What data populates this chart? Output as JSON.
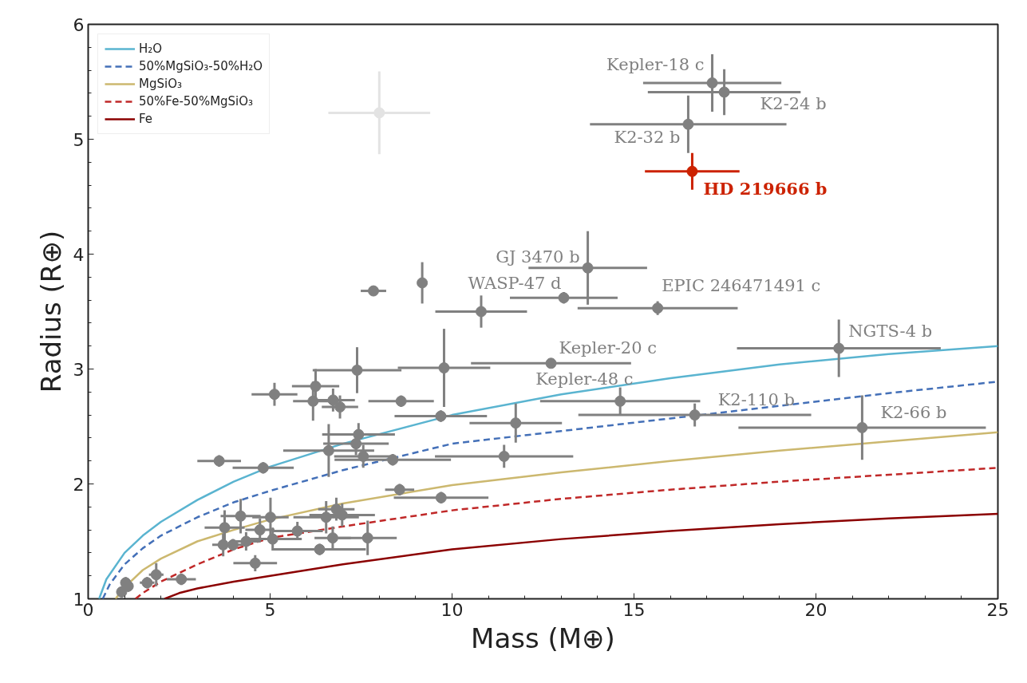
{
  "chart_data": {
    "type": "scatter",
    "xlabel": "Mass (M⊕)",
    "ylabel": "Radius (R⊕)",
    "xlim": [
      0,
      25
    ],
    "ylim": [
      1,
      6
    ],
    "xticks": [
      0,
      5,
      10,
      15,
      20,
      25
    ],
    "yticks": [
      1,
      2,
      3,
      4,
      5,
      6
    ],
    "legend": "top left",
    "grid": false,
    "series": [
      {
        "name": "H₂O",
        "type": "line",
        "color": "#5ab4d0",
        "line_style": "solid",
        "x": [
          0.3,
          0.5,
          1,
          1.5,
          2,
          3,
          4,
          5,
          7,
          10,
          13,
          16,
          19,
          22,
          25
        ],
        "values": [
          1,
          1.17,
          1.4,
          1.55,
          1.67,
          1.86,
          2.02,
          2.15,
          2.35,
          2.6,
          2.78,
          2.92,
          3.04,
          3.13,
          3.2
        ]
      },
      {
        "name": "50%MgSiO₃-50%H₂O",
        "type": "line",
        "color": "#4470b8",
        "line_style": "dashed",
        "x": [
          0.4,
          0.6,
          1,
          1.5,
          2,
          3,
          4,
          5,
          7,
          10,
          13,
          16,
          19,
          22,
          25
        ],
        "values": [
          1,
          1.13,
          1.3,
          1.44,
          1.55,
          1.71,
          1.84,
          1.94,
          2.12,
          2.35,
          2.46,
          2.57,
          2.68,
          2.79,
          2.89
        ]
      },
      {
        "name": "MgSiO₃",
        "type": "line",
        "color": "#ccb86f",
        "line_style": "solid",
        "x": [
          0.75,
          1,
          1.5,
          2,
          3,
          4,
          5,
          7,
          10,
          13,
          16,
          19,
          22,
          25
        ],
        "values": [
          1,
          1.1,
          1.25,
          1.35,
          1.5,
          1.6,
          1.69,
          1.83,
          1.99,
          2.1,
          2.2,
          2.29,
          2.37,
          2.45
        ]
      },
      {
        "name": "50%Fe-50%MgSiO₃",
        "type": "line",
        "color": "#c02828",
        "line_style": "dashed",
        "x": [
          1.3,
          1.5,
          2,
          3,
          4,
          5,
          7,
          10,
          13,
          16,
          19,
          22,
          25
        ],
        "values": [
          1,
          1.05,
          1.15,
          1.3,
          1.43,
          1.53,
          1.63,
          1.77,
          1.87,
          1.95,
          2.02,
          2.08,
          2.14
        ]
      },
      {
        "name": "Fe",
        "type": "line",
        "color": "#8b0000",
        "line_style": "solid",
        "x": [
          2.1,
          2.5,
          3,
          4,
          5,
          7,
          10,
          13,
          16,
          19,
          22,
          25
        ],
        "values": [
          1,
          1.05,
          1.09,
          1.15,
          1.2,
          1.3,
          1.43,
          1.52,
          1.59,
          1.65,
          1.7,
          1.74
        ]
      },
      {
        "marker": "circle",
        "color": "#e3e3e3",
        "x": [
          8.0
        ],
        "values": [
          5.23
        ],
        "errors": [
          0.36
        ],
        "xerrors": [
          1.4
        ]
      },
      {
        "marker": "circle",
        "color": "#808080",
        "x": [
          17.15,
          17.48,
          16.49,
          13.73,
          13.07,
          15.65,
          20.63,
          12.72,
          14.62,
          16.67,
          21.27,
          7.84,
          9.18,
          10.8,
          9.78,
          7.39,
          6.25,
          6.18,
          6.73,
          6.92,
          8.6,
          9.69,
          11.75,
          11.43,
          8.37,
          7.43,
          7.36,
          6.61,
          7.56,
          3.6,
          4.81,
          8.56,
          9.7,
          5.12,
          3.75,
          4.19,
          5.01,
          4.72,
          3.71,
          3.98,
          4.34,
          5.07,
          5.75,
          6.54,
          6.82,
          6.98,
          6.72,
          7.68,
          6.36,
          4.59,
          1.03,
          0.92,
          1.1,
          1.62,
          1.87,
          2.56
        ],
        "values": [
          5.49,
          5.41,
          5.13,
          3.88,
          3.62,
          3.53,
          3.18,
          3.05,
          2.72,
          2.6,
          2.49,
          3.68,
          3.75,
          3.5,
          3.01,
          2.99,
          2.85,
          2.72,
          2.73,
          2.67,
          2.72,
          2.59,
          2.53,
          2.24,
          2.21,
          2.43,
          2.35,
          2.29,
          2.24,
          2.2,
          2.14,
          1.95,
          1.88,
          2.78,
          1.62,
          1.72,
          1.71,
          1.6,
          1.47,
          1.47,
          1.5,
          1.52,
          1.59,
          1.71,
          1.78,
          1.73,
          1.53,
          1.53,
          1.43,
          1.31,
          1.14,
          1.06,
          1.11,
          1.14,
          1.21,
          1.17
        ],
        "errors": [
          0.25,
          0.2,
          0.25,
          0.32,
          0.05,
          0.06,
          0.25,
          0.04,
          0.12,
          0.1,
          0.28,
          null,
          0.18,
          0.14,
          0.34,
          0.2,
          0.15,
          0.17,
          0.1,
          0.1,
          0.05,
          0.05,
          0.17,
          0.1,
          0.05,
          0.1,
          0.1,
          0.23,
          0.1,
          0.05,
          0.05,
          0.05,
          0.05,
          0.1,
          0.15,
          0.15,
          0.17,
          0.1,
          0.1,
          0.05,
          0.08,
          0.1,
          0.08,
          0.14,
          0.1,
          0.1,
          0.1,
          0.15,
          0.05,
          0.07,
          0.05,
          0.05,
          0.05,
          0.05,
          0.1,
          0.05
        ],
        "xerrors": [
          1.9,
          2.1,
          2.7,
          1.63,
          1.48,
          2.2,
          2.8,
          2.2,
          2.2,
          3.2,
          3.4,
          0.35,
          null,
          1.26,
          1.27,
          1.22,
          0.65,
          0.55,
          0.6,
          0.5,
          0.9,
          1.27,
          1.27,
          1.9,
          1.6,
          1.0,
          0.9,
          1.25,
          0.8,
          0.6,
          0.84,
          0.4,
          1.3,
          0.63,
          0.55,
          0.55,
          0.5,
          0.4,
          0.3,
          0.3,
          0.4,
          0.8,
          0.7,
          0.9,
          0.5,
          0.9,
          0.5,
          0.8,
          1.27,
          0.6,
          0.1,
          0.1,
          0.1,
          0.2,
          0.2,
          0.4
        ]
      },
      {
        "marker": "circle",
        "color": "#cc2200",
        "x": [
          16.6
        ],
        "values": [
          4.72
        ],
        "errors": [
          0.16
        ],
        "xerrors": [
          1.3
        ]
      }
    ],
    "annotations": [
      {
        "text": "Kepler-18 c",
        "x": 17.15,
        "y": 5.49
      },
      {
        "text": "K2-24 b",
        "x": 17.48,
        "y": 5.41
      },
      {
        "text": "K2-32 b",
        "x": 16.49,
        "y": 5.13
      },
      {
        "text": "HD 219666 b",
        "x": 16.6,
        "y": 4.72
      },
      {
        "text": "GJ 3470 b",
        "x": 13.73,
        "y": 3.88
      },
      {
        "text": "WASP-47 d",
        "x": 13.07,
        "y": 3.62
      },
      {
        "text": "EPIC 246471491 c",
        "x": 15.65,
        "y": 3.53
      },
      {
        "text": "NGTS-4 b",
        "x": 20.63,
        "y": 3.18
      },
      {
        "text": "Kepler-20 c",
        "x": 12.72,
        "y": 3.05
      },
      {
        "text": "Kepler-48 c",
        "x": 14.62,
        "y": 2.72
      },
      {
        "text": "K2-110 b",
        "x": 16.67,
        "y": 2.6
      },
      {
        "text": "K2-66 b",
        "x": 21.27,
        "y": 2.49
      }
    ]
  }
}
